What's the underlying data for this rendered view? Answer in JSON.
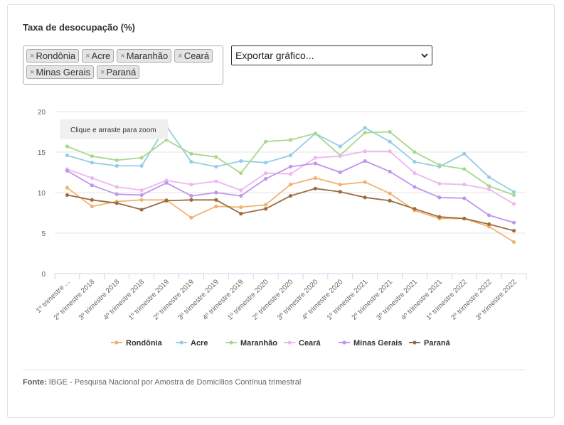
{
  "header": {
    "title": "Taxa de desocupação (%)"
  },
  "filter": {
    "remove_glyph": "×",
    "chips": [
      "Rondônia",
      "Acre",
      "Maranhão",
      "Ceará",
      "Minas Gerais",
      "Paraná"
    ]
  },
  "export_select": {
    "value": "Exportar gráfico..."
  },
  "zoom_hint": "Clique e arraste para zoom",
  "footer": {
    "source_label": "Fonte:",
    "source_text": "IBGE - Pesquisa Nacional por Amostra de Domicílios Contínua trimestral"
  },
  "chart_data": {
    "type": "line",
    "ylim": [
      0,
      20
    ],
    "yticks": [
      0,
      5,
      10,
      15,
      20
    ],
    "grid": true,
    "legend_position": "bottom",
    "categories": [
      "1º trimestre ...",
      "2º trimestre 2018",
      "3º trimestre 2018",
      "4º trimestre 2018",
      "1º trimestre 2019",
      "2º trimestre 2019",
      "3º trimestre 2019",
      "4º trimestre 2019",
      "1º trimestre 2020",
      "2º trimestre 2020",
      "3º trimestre 2020",
      "4º trimestre 2020",
      "1º trimestre 2021",
      "2º trimestre 2021",
      "3º trimestre 2021",
      "4º trimestre 2021",
      "1º trimestre 2022",
      "2º trimestre 2022",
      "3º trimestre 2022"
    ],
    "series": [
      {
        "name": "Rondônia",
        "color": "#f2b36f",
        "values": [
          10.6,
          8.3,
          8.9,
          9.1,
          9.1,
          6.9,
          8.3,
          8.2,
          8.5,
          11.0,
          11.8,
          11.0,
          11.3,
          9.9,
          7.8,
          6.8,
          6.8,
          5.8,
          3.9
        ]
      },
      {
        "name": "Acre",
        "color": "#94cde4",
        "values": [
          14.6,
          13.7,
          13.3,
          13.3,
          18.2,
          13.8,
          13.2,
          13.9,
          13.7,
          14.6,
          17.3,
          15.7,
          18.0,
          16.3,
          13.8,
          13.2,
          14.8,
          11.9,
          10.1
        ]
      },
      {
        "name": "Maranhão",
        "color": "#a8d88d",
        "values": [
          15.7,
          14.5,
          14.0,
          14.3,
          16.5,
          14.8,
          14.4,
          12.4,
          16.3,
          16.5,
          17.3,
          14.6,
          17.4,
          17.5,
          15.0,
          13.4,
          12.9,
          10.8,
          9.7
        ]
      },
      {
        "name": "Ceará",
        "color": "#edb7f0",
        "values": [
          12.9,
          11.8,
          10.7,
          10.3,
          11.5,
          11.0,
          11.4,
          10.3,
          12.4,
          12.3,
          14.3,
          14.5,
          15.1,
          15.1,
          12.4,
          11.1,
          11.0,
          10.4,
          8.6
        ]
      },
      {
        "name": "Minas Gerais",
        "color": "#c195ea",
        "values": [
          12.7,
          10.9,
          9.8,
          9.7,
          11.2,
          9.6,
          10.0,
          9.6,
          11.7,
          13.2,
          13.6,
          12.5,
          13.9,
          12.6,
          10.7,
          9.4,
          9.3,
          7.2,
          6.3
        ]
      },
      {
        "name": "Paraná",
        "color": "#9c6c40",
        "values": [
          9.7,
          9.1,
          8.7,
          7.9,
          9.0,
          9.1,
          9.1,
          7.4,
          8.0,
          9.6,
          10.5,
          10.1,
          9.4,
          9.0,
          8.0,
          7.0,
          6.8,
          6.1,
          5.3
        ]
      }
    ]
  }
}
